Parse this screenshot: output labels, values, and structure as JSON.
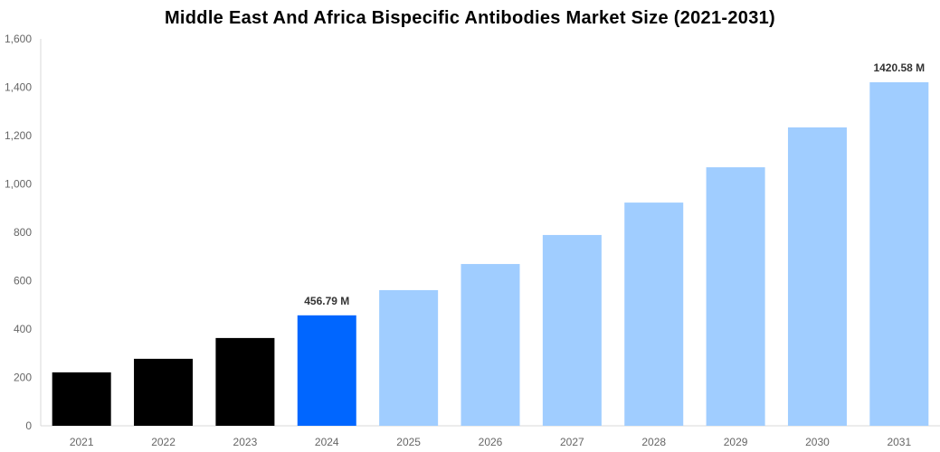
{
  "chart_data": {
    "type": "bar",
    "title": "Middle East And Africa Bispecific Antibodies Market Size (2021-2031)",
    "xlabel": "",
    "ylabel": "",
    "categories": [
      "2021",
      "2022",
      "2023",
      "2024",
      "2025",
      "2026",
      "2027",
      "2028",
      "2029",
      "2030",
      "2031"
    ],
    "values": [
      221,
      277,
      363,
      456.79,
      561,
      669,
      789,
      923,
      1069,
      1234,
      1420.58
    ],
    "data_labels": {
      "3": "456.79 M",
      "10": "1420.58 M"
    },
    "ylim": [
      0,
      1600
    ],
    "yticks": [
      0,
      200,
      400,
      600,
      800,
      1000,
      1200,
      1400,
      1600
    ],
    "ytick_labels": [
      "0",
      "200",
      "400",
      "600",
      "800",
      "1,000",
      "1,200",
      "1,400",
      "1,600"
    ],
    "grid": false,
    "colors": {
      "historical": "#000000",
      "current": "#0066ff",
      "forecast": "#a0cdff",
      "axis": "#d9d9d9"
    }
  }
}
